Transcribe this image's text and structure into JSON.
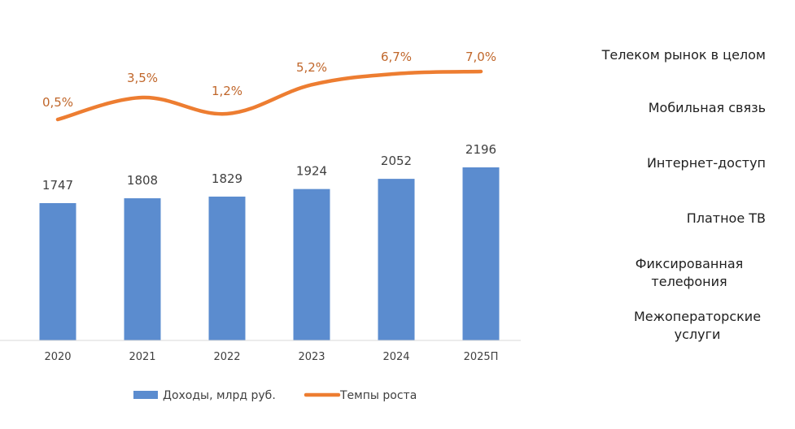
{
  "chart_data": {
    "type": "bar+line",
    "categories": [
      "2020",
      "2021",
      "2022",
      "2023",
      "2024",
      "2025П"
    ],
    "series": [
      {
        "name": "Доходы, млрд руб.",
        "type": "bar",
        "values": [
          1747,
          1808,
          1829,
          1924,
          2052,
          2196
        ],
        "labels": [
          "1747",
          "1808",
          "1829",
          "1924",
          "2052",
          "2196"
        ],
        "color": "#5b8ccf"
      },
      {
        "name": "Темпы роста",
        "type": "line",
        "values": [
          0.5,
          3.5,
          1.2,
          5.2,
          6.7,
          7.0
        ],
        "labels": [
          "0,5%",
          "3,5%",
          "1,2%",
          "5,2%",
          "6,7%",
          "7,0%"
        ],
        "color": "#ed7d31"
      }
    ],
    "legend": "bottom"
  },
  "side_panel": {
    "items": [
      "Телеком рынок в целом",
      "Мобильная связь",
      "Интернет-доступ",
      "Платное ТВ",
      "Фиксированная телефония",
      "Межоператорские услуги"
    ]
  }
}
